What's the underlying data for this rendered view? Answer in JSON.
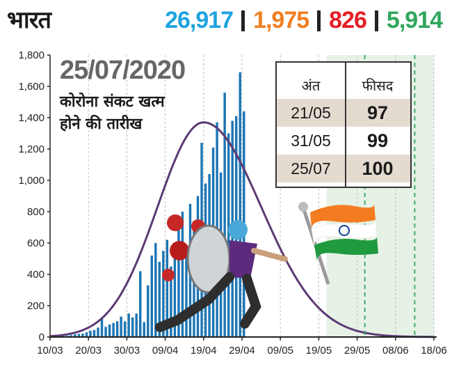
{
  "header": {
    "title": "भारत",
    "stats": [
      {
        "value": "26,917",
        "color": "#1fa3e0"
      },
      {
        "value": "1,975",
        "color": "#f07f22"
      },
      {
        "value": "826",
        "color": "#e31f26"
      },
      {
        "value": "5,914",
        "color": "#2fa65b"
      }
    ]
  },
  "annotation": {
    "date": "25/07/2020",
    "line1": "कोरोना संकट खत्म",
    "line2": "होने की तारीख"
  },
  "table": {
    "headers": [
      "अंत",
      "फीसद"
    ],
    "rows": [
      {
        "date": "21/05",
        "pct": "97"
      },
      {
        "date": "31/05",
        "pct": "99"
      },
      {
        "date": "25/07",
        "pct": "100"
      }
    ]
  },
  "colors": {
    "bars": "#1b75b4",
    "curve": "#5b3a74",
    "grid": "#bbbbbb",
    "shade": "#e6f2e6",
    "marker": "#2fa65b"
  },
  "illustration_icons": [
    "coronavirus-icon",
    "shield-figure-icon",
    "india-flag-icon"
  ],
  "chart_data": {
    "type": "bar",
    "x_tick_labels": [
      "10/03",
      "20/03",
      "30/03",
      "09/04",
      "19/04",
      "29/04",
      "09/05",
      "19/05",
      "29/05",
      "08/06",
      "18/06"
    ],
    "y_ticks": [
      0,
      200,
      400,
      600,
      800,
      1000,
      1200,
      1400,
      1600,
      1800
    ],
    "y_tick_labels": [
      "0",
      "200",
      "400",
      "600",
      "800",
      "1,000",
      "1,200",
      "1,400",
      "1,600",
      "1,800"
    ],
    "ylim": [
      0,
      1800
    ],
    "x_range_days": [
      0,
      100
    ],
    "bar_start_day": 0,
    "daily_new_cases": [
      5,
      8,
      10,
      9,
      8,
      12,
      18,
      20,
      22,
      30,
      40,
      45,
      60,
      120,
      65,
      80,
      90,
      100,
      130,
      100,
      150,
      125,
      150,
      420,
      95,
      330,
      520,
      600,
      480,
      550,
      620,
      450,
      600,
      710,
      800,
      520,
      850,
      740,
      900,
      1240,
      980,
      1040,
      1210,
      1370,
      1050,
      1560,
      1300,
      1380,
      1410,
      1690,
      1440
    ],
    "fitted_curve": {
      "peak_day": 40,
      "peak_value": 1370,
      "sigma_left": 12,
      "sigma_right": 15
    },
    "shaded_region_days": [
      72,
      100
    ],
    "dashed_marker_days": [
      82,
      95
    ]
  }
}
